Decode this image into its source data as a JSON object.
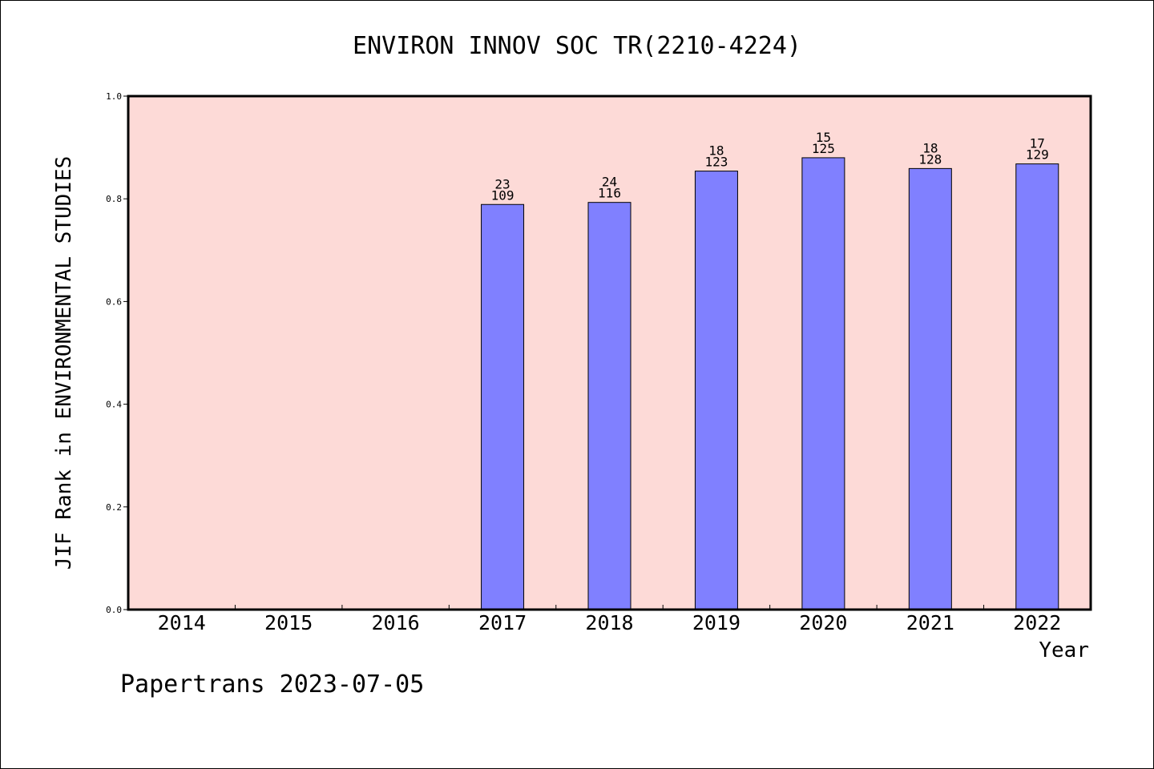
{
  "chart_data": {
    "type": "bar",
    "title": "ENVIRON INNOV SOC TR(2210-4224)",
    "xlabel": "Year",
    "ylabel": "JIF Rank in ENVIRONMENTAL STUDIES",
    "categories": [
      "2014",
      "2015",
      "2016",
      "2017",
      "2018",
      "2019",
      "2020",
      "2021",
      "2022"
    ],
    "values": [
      null,
      null,
      null,
      0.789,
      0.793,
      0.854,
      0.88,
      0.859,
      0.868
    ],
    "rank": [
      "",
      "",
      "",
      "23",
      "24",
      "18",
      "15",
      "18",
      "17"
    ],
    "total": [
      "",
      "",
      "",
      "109",
      "116",
      "123",
      "125",
      "128",
      "129"
    ],
    "ylim": [
      0,
      1
    ],
    "yticks": [
      "0.0",
      "0.2",
      "0.4",
      "0.6",
      "0.8",
      "1.0"
    ],
    "grid": false,
    "colors": {
      "plot_bg": "#fddad7",
      "bar": "#8080ff",
      "bar_edge": "#000000"
    }
  },
  "footer": "Papertrans 2023-07-05"
}
